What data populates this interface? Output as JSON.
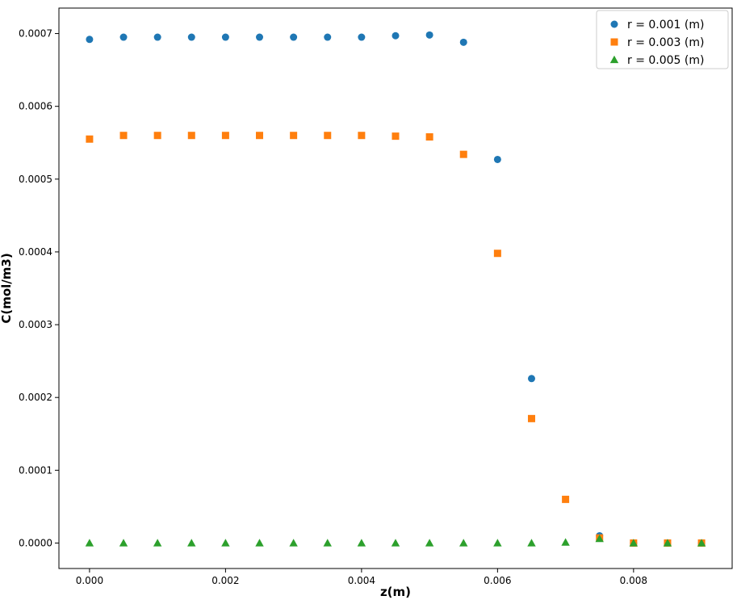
{
  "chart_data": {
    "type": "scatter",
    "xlabel": "z(m)",
    "ylabel": "C(mol/m3)",
    "xlim": [
      -0.00045,
      0.00945
    ],
    "ylim": [
      -3.5e-05,
      0.000735
    ],
    "xticks": [
      0.0,
      0.002,
      0.004,
      0.006,
      0.008
    ],
    "xtick_labels": [
      "0.000",
      "0.002",
      "0.004",
      "0.006",
      "0.008"
    ],
    "yticks": [
      0.0,
      0.0001,
      0.0002,
      0.0003,
      0.0004,
      0.0005,
      0.0006,
      0.0007
    ],
    "ytick_labels": [
      "0.0000",
      "0.0001",
      "0.0002",
      "0.0003",
      "0.0004",
      "0.0005",
      "0.0006",
      "0.0007"
    ],
    "grid": false,
    "legend_position": "top-right",
    "x": [
      0.0,
      0.0005,
      0.001,
      0.0015,
      0.002,
      0.0025,
      0.003,
      0.0035,
      0.004,
      0.0045,
      0.005,
      0.0055,
      0.006,
      0.0065,
      0.007,
      0.0075,
      0.008,
      0.0085,
      0.009
    ],
    "series": [
      {
        "name": "r = 0.001 (m)",
        "marker": "circle",
        "color": "#1f77b4",
        "x": [
          0.0,
          0.0005,
          0.001,
          0.0015,
          0.002,
          0.0025,
          0.003,
          0.0035,
          0.004,
          0.0045,
          0.005,
          0.0055,
          0.006,
          0.0065,
          0.0075,
          0.008,
          0.0085,
          0.009
        ],
        "values": [
          0.000692,
          0.000695,
          0.000695,
          0.000695,
          0.000695,
          0.000695,
          0.000695,
          0.000695,
          0.000695,
          0.000697,
          0.000698,
          0.000688,
          0.000527,
          0.000226,
          1e-05,
          0.0,
          0.0,
          0.0
        ]
      },
      {
        "name": "r = 0.003 (m)",
        "marker": "square",
        "color": "#ff7f0e",
        "x": [
          0.0,
          0.0005,
          0.001,
          0.0015,
          0.002,
          0.0025,
          0.003,
          0.0035,
          0.004,
          0.0045,
          0.005,
          0.0055,
          0.006,
          0.0065,
          0.007,
          0.0075,
          0.008,
          0.0085,
          0.009
        ],
        "values": [
          0.000555,
          0.00056,
          0.00056,
          0.00056,
          0.00056,
          0.00056,
          0.00056,
          0.00056,
          0.00056,
          0.000559,
          0.000558,
          0.000534,
          0.000398,
          0.000171,
          6e-05,
          7e-06,
          0.0,
          0.0,
          0.0
        ]
      },
      {
        "name": "r = 0.005 (m)",
        "marker": "triangle",
        "color": "#2ca02c",
        "x": [
          0.0,
          0.0005,
          0.001,
          0.0015,
          0.002,
          0.0025,
          0.003,
          0.0035,
          0.004,
          0.0045,
          0.005,
          0.0055,
          0.006,
          0.0065,
          0.007,
          0.0075,
          0.008,
          0.0085,
          0.009
        ],
        "values": [
          0.0,
          0.0,
          0.0,
          0.0,
          0.0,
          0.0,
          0.0,
          0.0,
          0.0,
          0.0,
          0.0,
          0.0,
          0.0,
          0.0,
          1e-06,
          6e-06,
          0.0,
          0.0,
          0.0
        ]
      }
    ]
  }
}
